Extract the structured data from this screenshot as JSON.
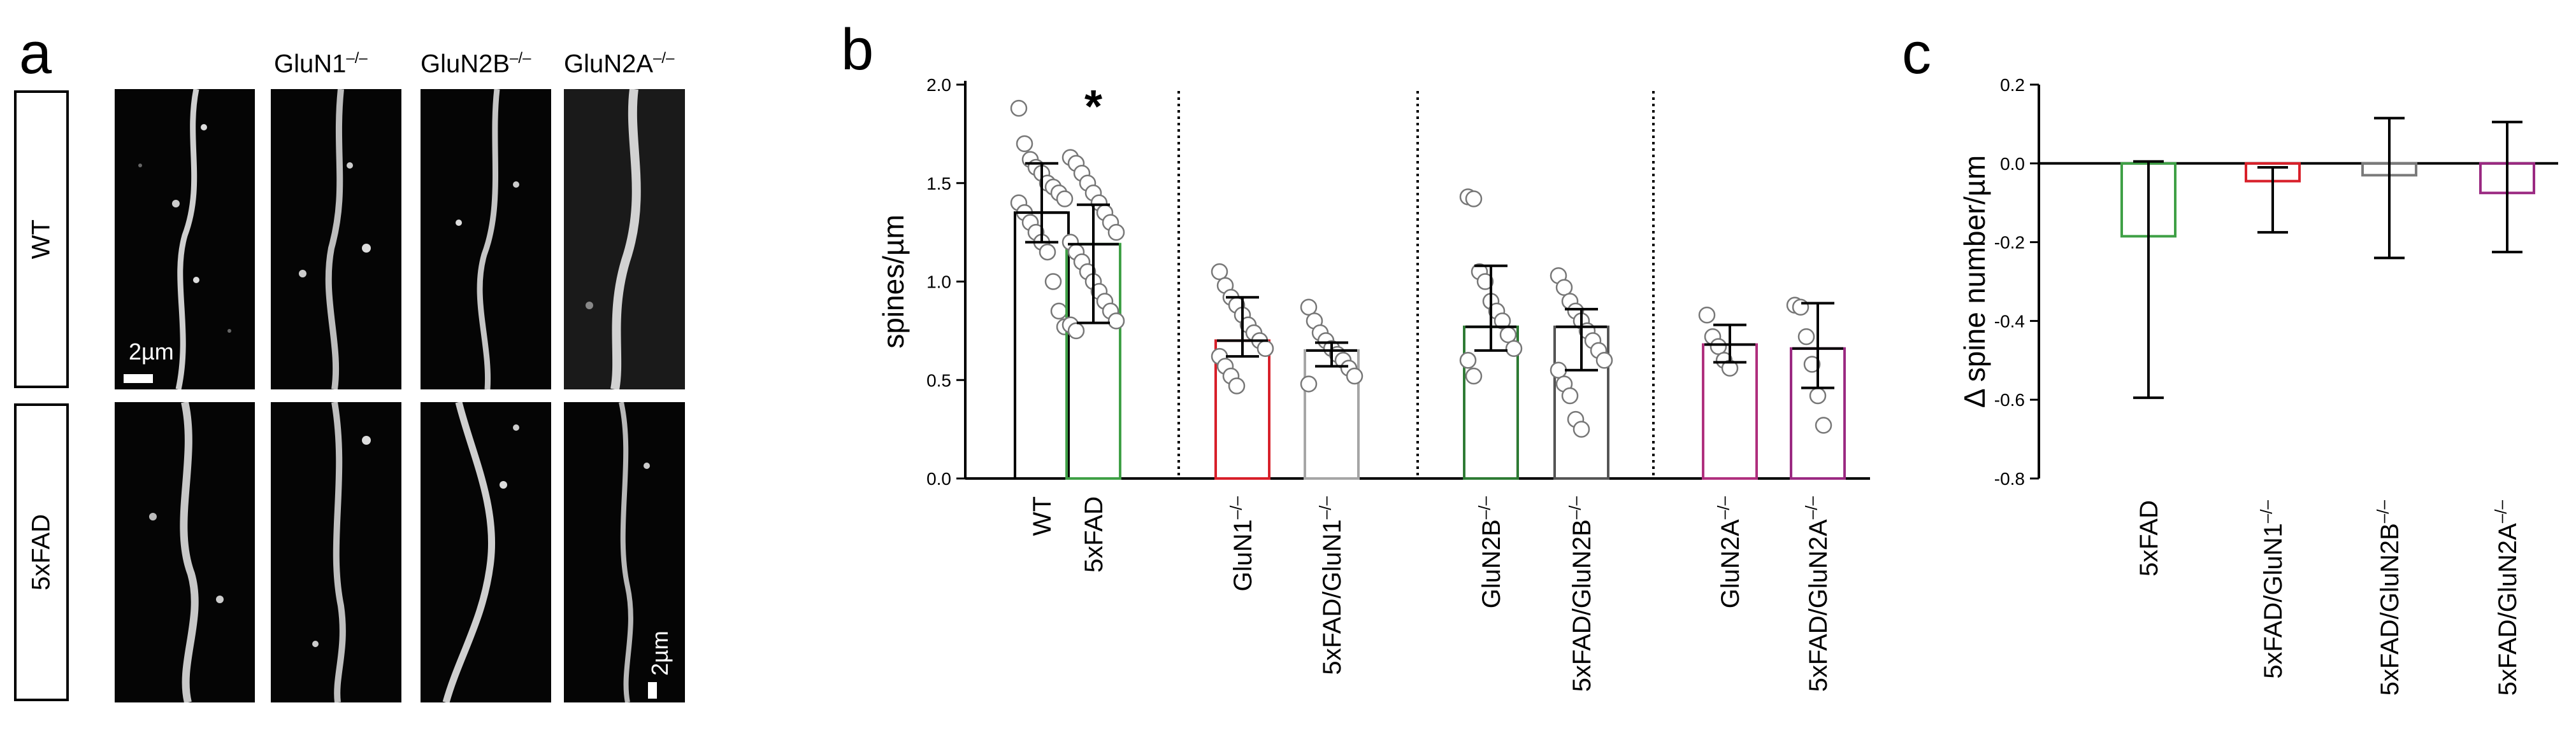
{
  "panel_a": {
    "letter": "a",
    "columns": [
      {
        "base": "",
        "sup": ""
      },
      {
        "base": "GluN1",
        "sup": "–/–"
      },
      {
        "base": "GluN2B",
        "sup": "–/–"
      },
      {
        "base": "GluN2A",
        "sup": "–/–"
      }
    ],
    "rows": [
      "WT",
      "5xFAD"
    ],
    "scale_bar_label": "2µm"
  },
  "chart_data": [
    {
      "panel": "b",
      "type": "bar",
      "ylabel": "spines/µm",
      "ylim": [
        0,
        2.0
      ],
      "yticks": [
        "0.0",
        "0.5",
        "1.0",
        "1.5",
        "2.0"
      ],
      "categories": [
        "WT",
        "5xFAD",
        "GluN1–/–",
        "5xFAD/GluN1–/–",
        "GluN2B–/–",
        "5xFAD/GluN2B–/–",
        "GluN2A–/–",
        "5xFAD/GluN2A–/–"
      ],
      "values": [
        1.35,
        1.19,
        0.7,
        0.65,
        0.77,
        0.77,
        0.68,
        0.66
      ],
      "error_low": [
        1.2,
        0.79,
        0.62,
        0.57,
        0.65,
        0.55,
        0.59,
        0.46
      ],
      "error_high": [
        1.6,
        1.39,
        0.92,
        0.69,
        1.08,
        0.86,
        0.78,
        0.89
      ],
      "bar_colors": [
        "#000000",
        "#3fa046",
        "#d8202a",
        "#a6a6a6",
        "#2e7b34",
        "#555555",
        "#b0307e",
        "#9b2a82"
      ],
      "significance": [
        {
          "category": "5xFAD",
          "mark": "*"
        }
      ],
      "points": [
        [
          1.88,
          1.7,
          1.62,
          1.58,
          1.55,
          1.5,
          1.48,
          1.45,
          1.42,
          1.4,
          1.35,
          1.3,
          1.25,
          1.2,
          1.15,
          1.0,
          0.85,
          0.77
        ],
        [
          1.63,
          1.6,
          1.55,
          1.5,
          1.45,
          1.4,
          1.35,
          1.3,
          1.25,
          1.2,
          1.15,
          1.1,
          1.05,
          1.0,
          0.95,
          0.9,
          0.85,
          0.8,
          0.78,
          0.75
        ],
        [
          1.05,
          0.98,
          0.92,
          0.88,
          0.83,
          0.78,
          0.74,
          0.7,
          0.66,
          0.62,
          0.57,
          0.52,
          0.47
        ],
        [
          0.87,
          0.8,
          0.74,
          0.7,
          0.66,
          0.63,
          0.6,
          0.56,
          0.52,
          0.48
        ],
        [
          1.43,
          1.42,
          1.05,
          1.0,
          0.9,
          0.85,
          0.8,
          0.73,
          0.66,
          0.6,
          0.52
        ],
        [
          1.03,
          0.97,
          0.9,
          0.85,
          0.8,
          0.75,
          0.7,
          0.65,
          0.6,
          0.55,
          0.48,
          0.42,
          0.3,
          0.25
        ],
        [
          0.83,
          0.72,
          0.67,
          0.6,
          0.56
        ],
        [
          0.88,
          0.87,
          0.72,
          0.58,
          0.42,
          0.27
        ]
      ]
    },
    {
      "panel": "c",
      "type": "bar",
      "ylabel": "Δ spine number/µm",
      "ylim": [
        -0.8,
        0.2
      ],
      "yticks": [
        "0.2",
        "0.0",
        "-0.2",
        "-0.4",
        "-0.6",
        "-0.8"
      ],
      "categories": [
        "5xFAD",
        "5xFAD/GluN1–/–",
        "5xFAD/GluN2B–/–",
        "5xFAD/GluN2A–/–"
      ],
      "values": [
        -0.185,
        -0.045,
        -0.03,
        -0.075
      ],
      "error_low": [
        -0.595,
        -0.175,
        -0.24,
        -0.225
      ],
      "error_high": [
        0.005,
        -0.01,
        0.115,
        0.105
      ],
      "bar_colors": [
        "#3fa046",
        "#d8202a",
        "#7a7a7a",
        "#9b2a82"
      ]
    }
  ]
}
